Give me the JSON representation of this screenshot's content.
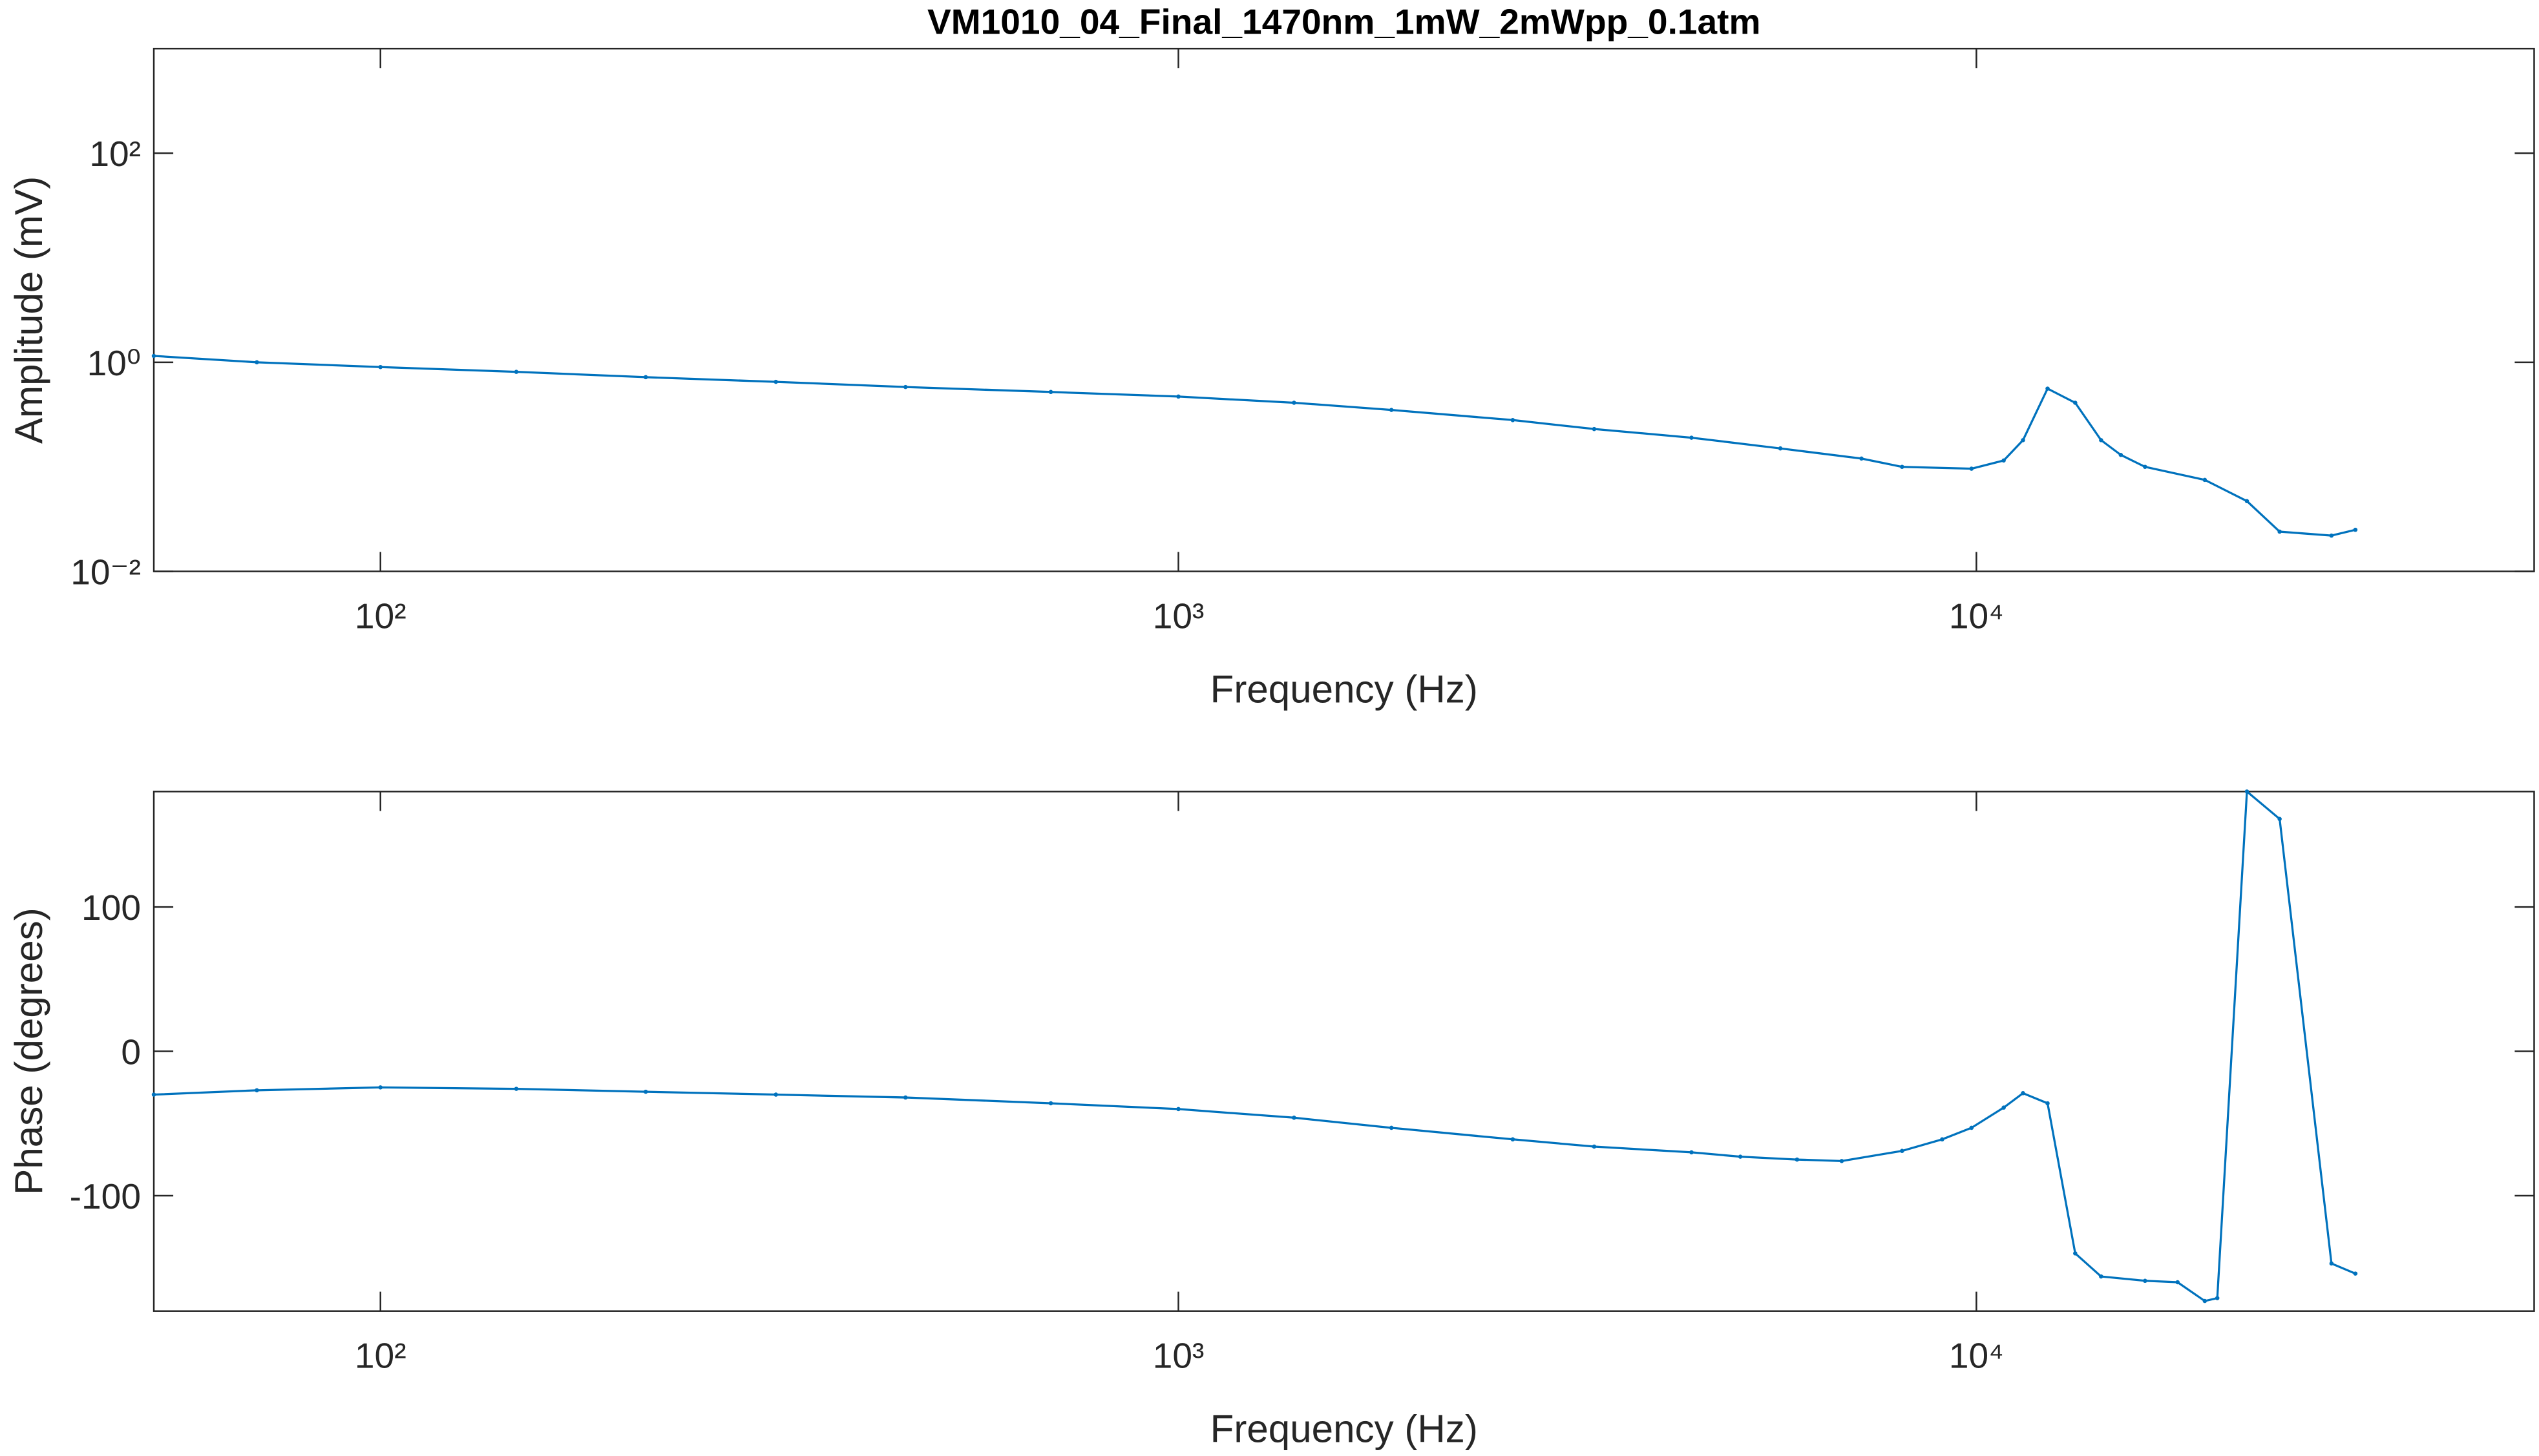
{
  "chart_data": [
    {
      "type": "line",
      "title": "VM1010_04_Final_1470nm_1mW_2mWpp_0.1atm",
      "x_label": "Frequency (Hz)",
      "y_label": "Amplitude (mV)",
      "xscale": "log",
      "yscale": "log",
      "grid": false,
      "xlim": [
        52,
        50000
      ],
      "ylim": [
        0.01,
        1000
      ],
      "xticks": [
        {
          "value": 100,
          "label": "10²"
        },
        {
          "value": 1000,
          "label": "10³"
        },
        {
          "value": 10000,
          "label": "10⁴"
        }
      ],
      "yticks": [
        {
          "value": 0.01,
          "label": "10⁻²"
        },
        {
          "value": 1,
          "label": "10⁰"
        },
        {
          "value": 100,
          "label": "10²"
        }
      ],
      "series": [
        {
          "color": "#0072bd",
          "x": [
            52,
            70,
            100,
            148,
            215,
            313,
            455,
            692,
            1000,
            1396,
            1849,
            2624,
            3319,
            4395,
            5680,
            7178,
            8070,
            9860,
            10820,
            11440,
            12280,
            13300,
            14330,
            15170,
            16270,
            19330,
            21830,
            23990,
            27860,
            29850
          ],
          "values": [
            1.15,
            1.0,
            0.9,
            0.81,
            0.72,
            0.65,
            0.58,
            0.52,
            0.47,
            0.41,
            0.35,
            0.28,
            0.23,
            0.19,
            0.15,
            0.12,
            0.1,
            0.096,
            0.115,
            0.18,
            0.56,
            0.41,
            0.18,
            0.13,
            0.1,
            0.075,
            0.047,
            0.024,
            0.022,
            0.025
          ]
        }
      ]
    },
    {
      "type": "line",
      "x_label": "Frequency (Hz)",
      "y_label": "Phase (degrees)",
      "xscale": "log",
      "yscale": "linear",
      "grid": false,
      "xlim": [
        52,
        50000
      ],
      "ylim": [
        -180,
        180
      ],
      "xticks": [
        {
          "value": 100,
          "label": "10²"
        },
        {
          "value": 1000,
          "label": "10³"
        },
        {
          "value": 10000,
          "label": "10⁴"
        }
      ],
      "yticks": [
        -100,
        0,
        100
      ],
      "series": [
        {
          "color": "#0072bd",
          "x": [
            52,
            70,
            100,
            148,
            215,
            313,
            455,
            692,
            1000,
            1396,
            1849,
            2624,
            3319,
            4395,
            5060,
            5960,
            6780,
            8070,
            9060,
            9860,
            10820,
            11440,
            12280,
            13300,
            14330,
            16270,
            17870,
            19330,
            20040,
            21830,
            23990,
            27860,
            29850
          ],
          "values": [
            -30,
            -27,
            -25,
            -26,
            -28,
            -30,
            -32,
            -36,
            -40,
            -46,
            -53,
            -61,
            -66,
            -70,
            -73,
            -75,
            -76,
            -69,
            -61,
            -53,
            -39,
            -29,
            -36,
            -140,
            -156,
            -159,
            -160,
            -173,
            -171,
            180,
            161,
            -147,
            -154
          ]
        }
      ]
    }
  ]
}
